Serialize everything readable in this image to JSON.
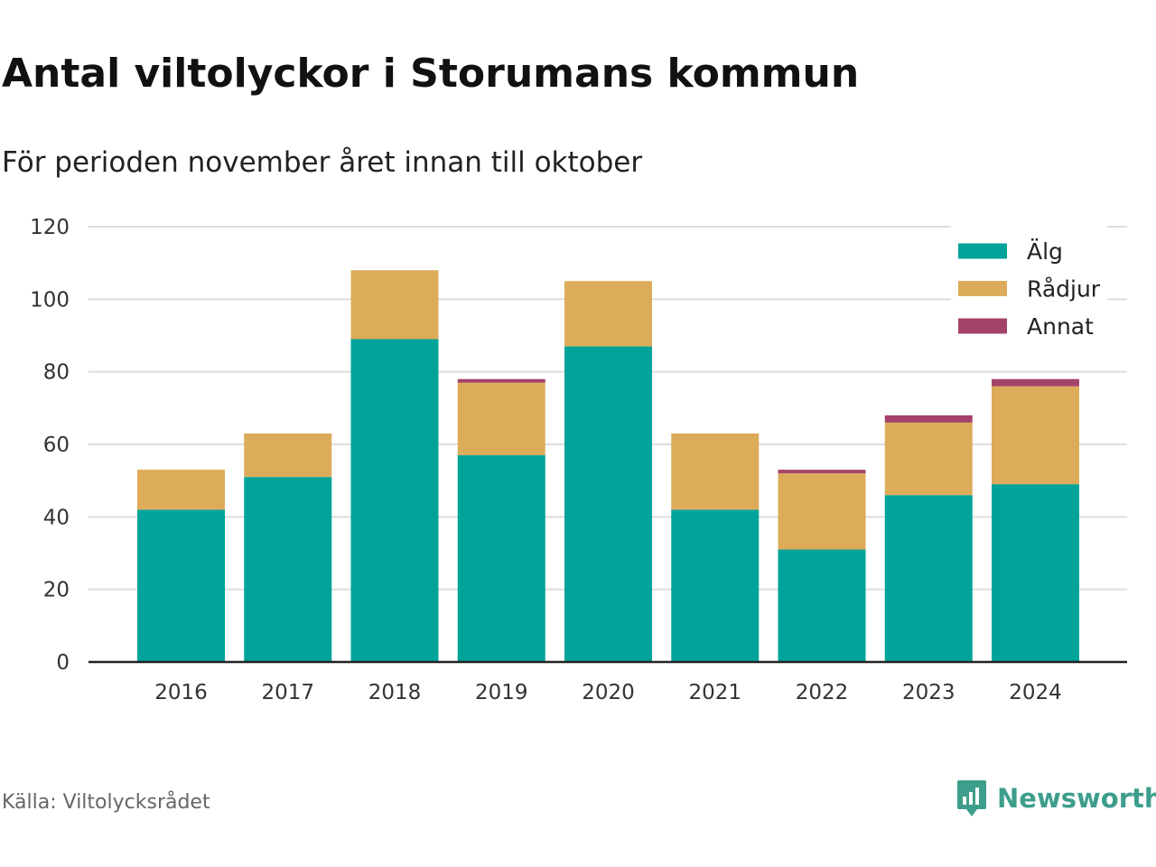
{
  "title": "Antal viltolyckor i Storumans kommun",
  "subtitle": "För perioden november året innan till oktober",
  "source": "Källa: Viltolycksrådet",
  "brand": "Newsworthy",
  "colors": {
    "alg": "#00a39a",
    "radjur": "#dcac5a",
    "annat": "#a4436a",
    "grid": "#dddddd",
    "axis": "#222222",
    "brand": "#3d9e8c"
  },
  "chart_data": {
    "type": "bar",
    "stacked": true,
    "categories": [
      "2016",
      "2017",
      "2018",
      "2019",
      "2020",
      "2021",
      "2022",
      "2023",
      "2024"
    ],
    "series": [
      {
        "name": "Älg",
        "color": "#00a39a",
        "values": [
          42,
          51,
          89,
          57,
          87,
          42,
          31,
          46,
          49
        ]
      },
      {
        "name": "Rådjur",
        "color": "#dcac5a",
        "values": [
          11,
          12,
          19,
          20,
          18,
          21,
          21,
          20,
          27
        ]
      },
      {
        "name": "Annat",
        "color": "#a4436a",
        "values": [
          0,
          0,
          0,
          1,
          0,
          0,
          1,
          2,
          2
        ]
      }
    ],
    "ylim": [
      0,
      120
    ],
    "yticks": [
      0,
      20,
      40,
      60,
      80,
      100,
      120
    ],
    "grid": true,
    "legend_position": "top-right"
  }
}
